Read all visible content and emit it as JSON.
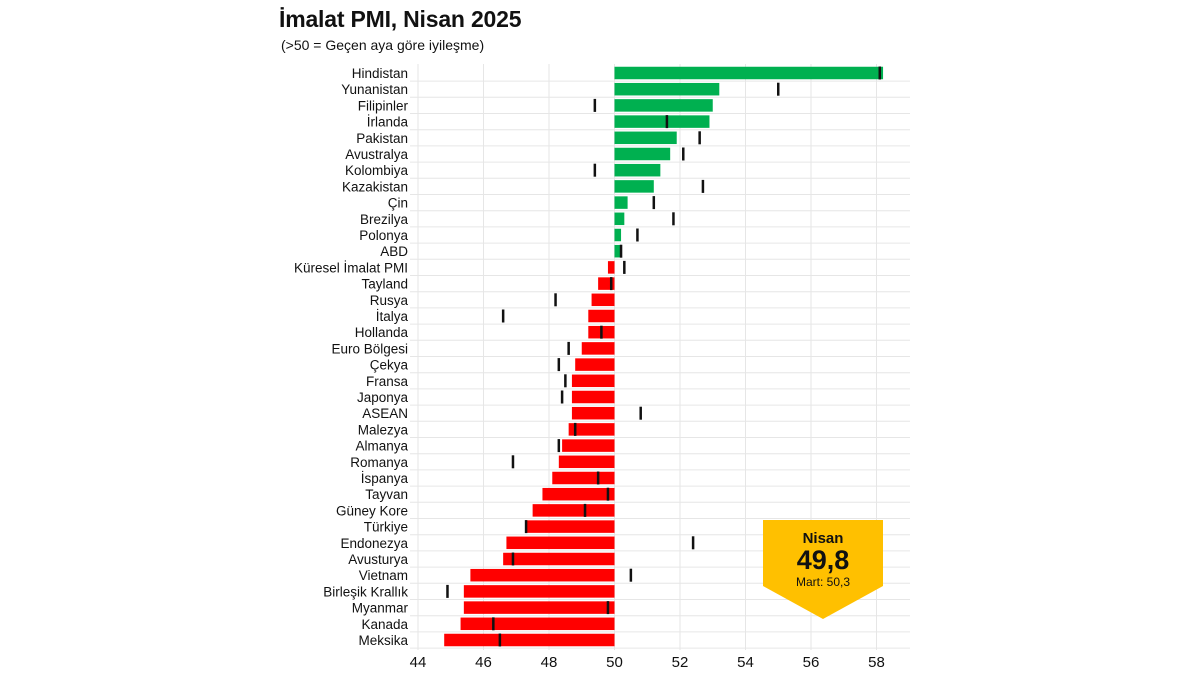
{
  "title": "İmalat PMI, Nisan 2025",
  "subtitle": "(>50 = Geçen aya göre iyileşme)",
  "colors": {
    "positive": "#00b050",
    "negative": "#ff0000",
    "marker": "#111111",
    "callout": "#ffc000",
    "grid": "#e6e6e6"
  },
  "callout": {
    "month": "Nisan",
    "value": "49,8",
    "prev": "Mart: 50,3"
  },
  "chart_data": {
    "type": "bar",
    "orientation": "horizontal",
    "title": "İmalat PMI, Nisan 2025",
    "subtitle": "(>50 = Geçen aya göre iyileşme)",
    "baseline": 50,
    "xlim": [
      44,
      59
    ],
    "xticks": [
      44,
      46,
      48,
      50,
      52,
      54,
      56,
      58
    ],
    "series": [
      {
        "name": "Nisan",
        "kind": "bar"
      },
      {
        "name": "Mart",
        "kind": "marker"
      }
    ],
    "categories": [
      "Hindistan",
      "Yunanistan",
      "Filipinler",
      "İrlanda",
      "Pakistan",
      "Avustralya",
      "Kolombiya",
      "Kazakistan",
      "Çin",
      "Brezilya",
      "Polonya",
      "ABD",
      "Küresel İmalat PMI",
      "Tayland",
      "Rusya",
      "İtalya",
      "Hollanda",
      "Euro Bölgesi",
      "Çekya",
      "Fransa",
      "Japonya",
      "ASEAN",
      "Malezya",
      "Almanya",
      "Romanya",
      "İspanya",
      "Tayvan",
      "Güney Kore",
      "Türkiye",
      "Endonezya",
      "Avusturya",
      "Vietnam",
      "Birleşik Krallık",
      "Myanmar",
      "Kanada",
      "Meksika"
    ],
    "values": [
      58.2,
      53.2,
      53.0,
      52.9,
      51.9,
      51.7,
      51.4,
      51.2,
      50.4,
      50.3,
      50.2,
      50.2,
      49.8,
      49.5,
      49.3,
      49.2,
      49.2,
      49.0,
      48.8,
      48.7,
      48.7,
      48.7,
      48.6,
      48.4,
      48.3,
      48.1,
      47.8,
      47.5,
      47.3,
      46.7,
      46.6,
      45.6,
      45.4,
      45.4,
      45.3,
      44.8
    ],
    "previous": [
      58.1,
      55.0,
      49.4,
      51.6,
      52.6,
      52.1,
      49.4,
      52.7,
      51.2,
      51.8,
      50.7,
      50.2,
      50.3,
      49.9,
      48.2,
      46.6,
      49.6,
      48.6,
      48.3,
      48.5,
      48.4,
      50.8,
      48.8,
      48.3,
      46.9,
      49.5,
      49.8,
      49.1,
      47.3,
      52.4,
      46.9,
      50.5,
      44.9,
      49.8,
      46.3,
      46.5
    ]
  }
}
